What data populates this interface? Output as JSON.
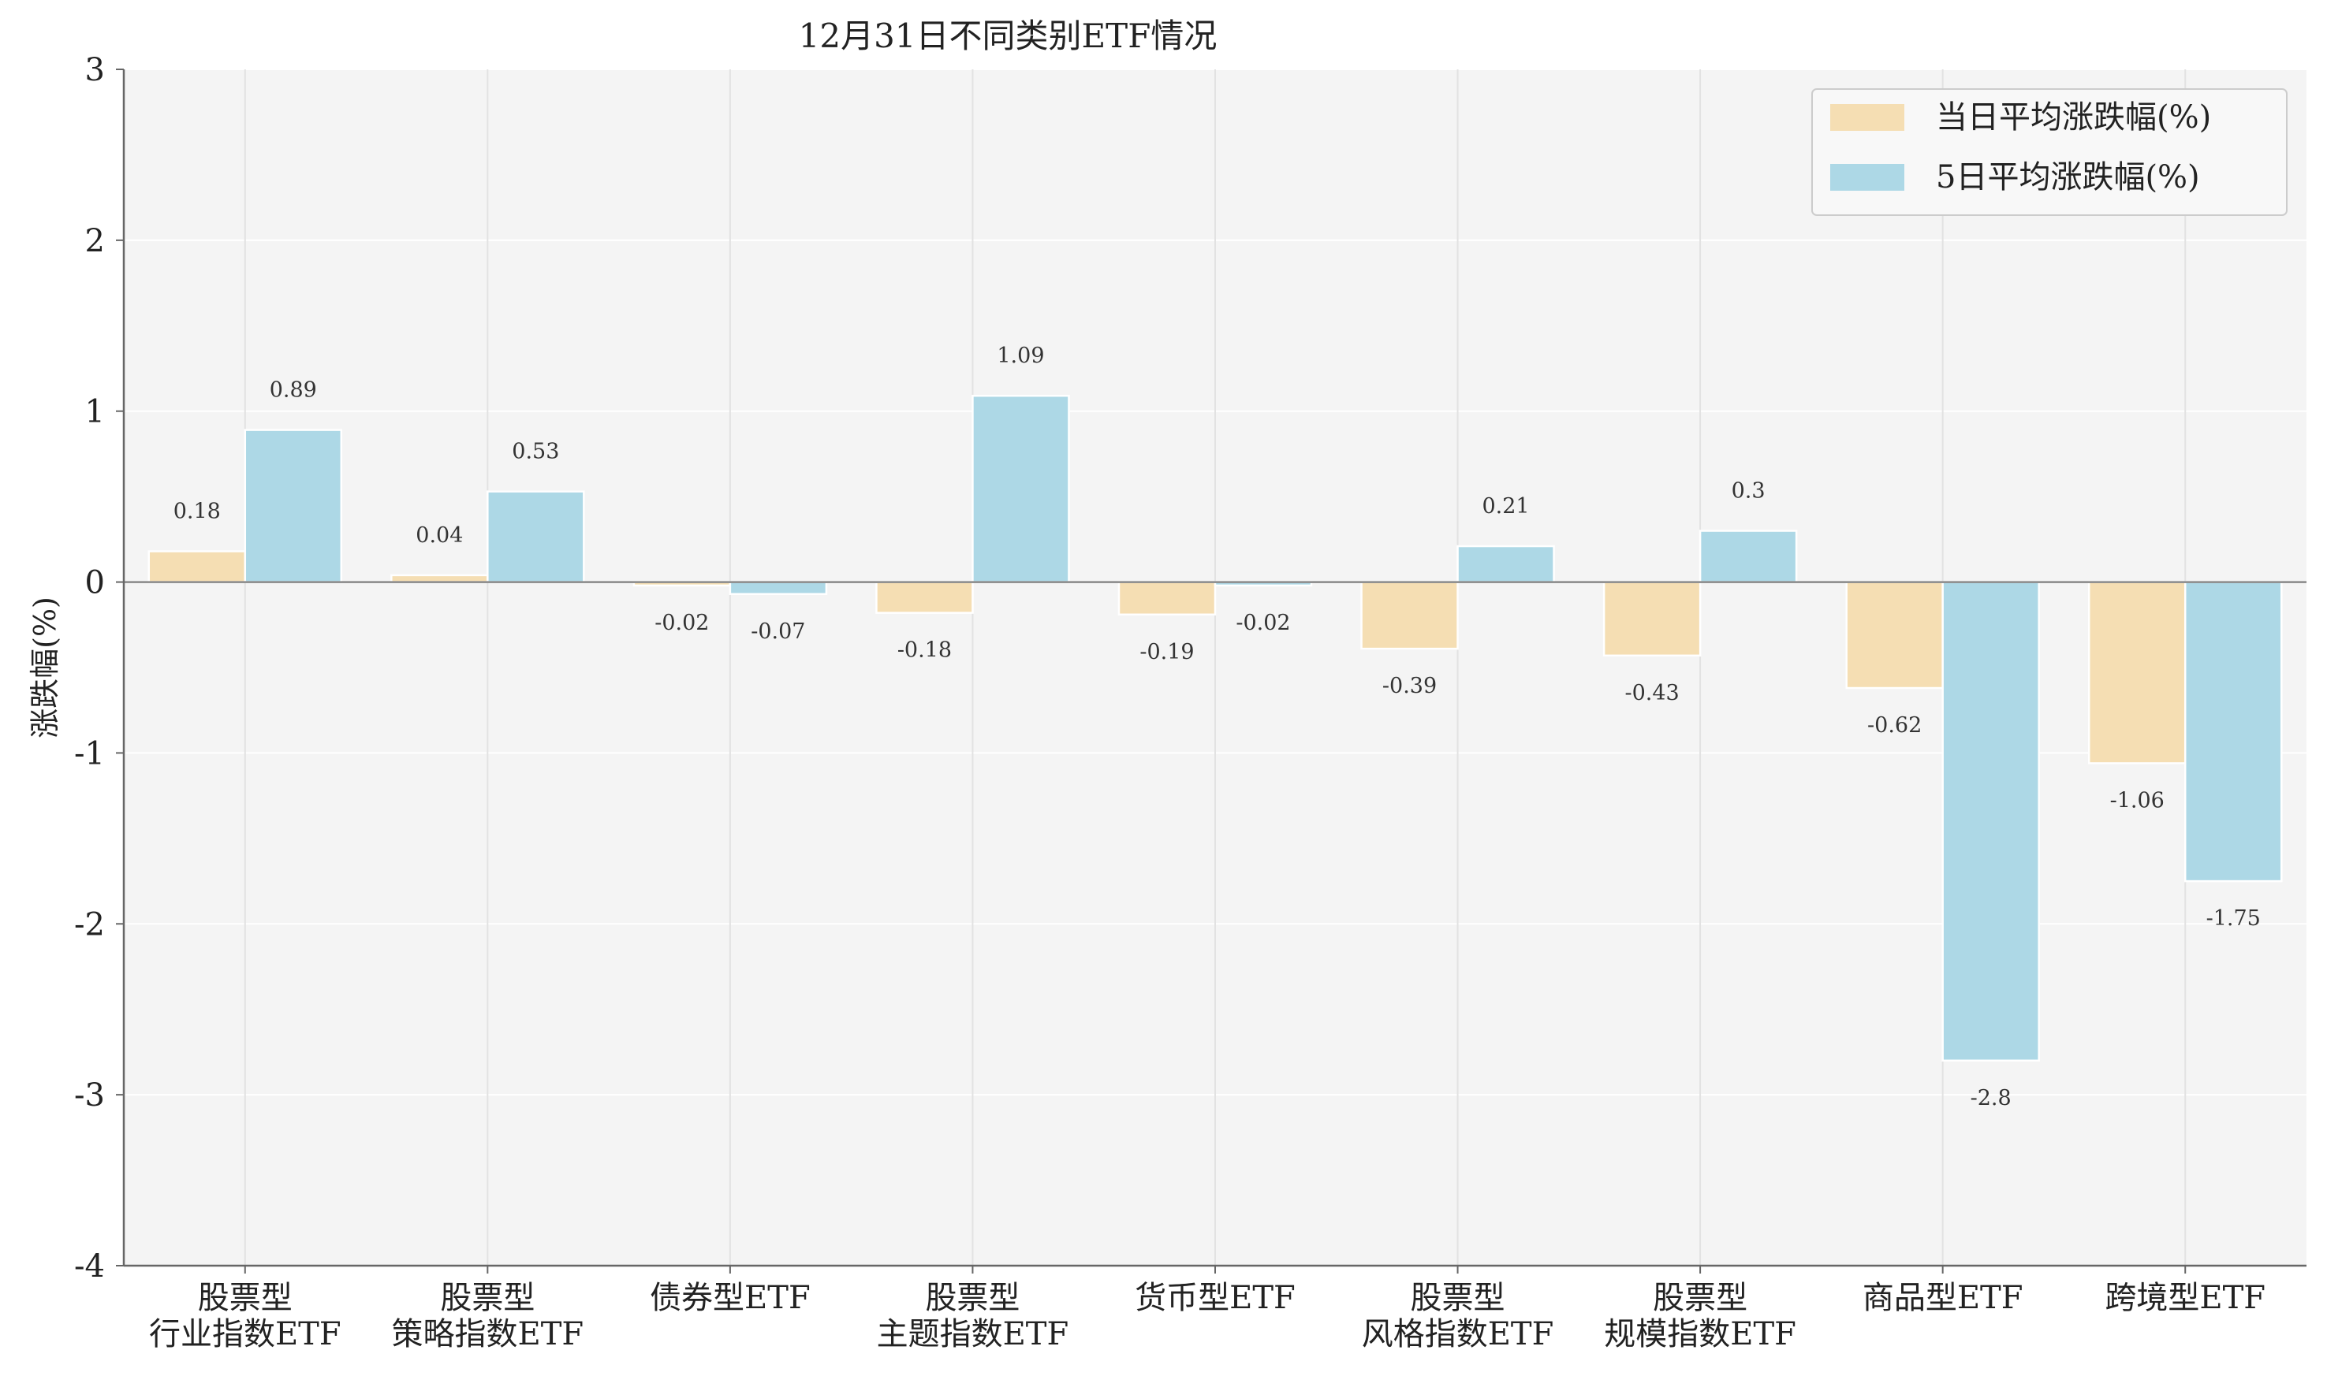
{
  "chart_data": {
    "type": "bar",
    "title": "12月31日不同类别ETF情况",
    "xlabel": "",
    "ylabel": "涨跌幅(%)",
    "ylim": [
      -4,
      3
    ],
    "yticks": [
      3,
      2,
      1,
      0,
      -1,
      -2,
      -3,
      -4
    ],
    "grid": true,
    "legend": "top-right",
    "categories": [
      [
        "股票型",
        "行业指数ETF"
      ],
      [
        "股票型",
        "策略指数ETF"
      ],
      [
        "债券型ETF"
      ],
      [
        "股票型",
        "主题指数ETF"
      ],
      [
        "货币型ETF"
      ],
      [
        "股票型",
        "风格指数ETF"
      ],
      [
        "股票型",
        "规模指数ETF"
      ],
      [
        "商品型ETF"
      ],
      [
        "跨境型ETF"
      ]
    ],
    "series": [
      {
        "name": "当日平均涨跌幅(%)",
        "color": "#f5deb3",
        "values": [
          0.18,
          0.04,
          -0.02,
          -0.18,
          -0.19,
          -0.39,
          -0.43,
          -0.62,
          -1.06
        ]
      },
      {
        "name": "5日平均涨跌幅(%)",
        "color": "#add8e6",
        "values": [
          0.89,
          0.53,
          -0.07,
          1.09,
          -0.02,
          0.21,
          0.3,
          -2.8,
          -1.75
        ]
      }
    ]
  }
}
